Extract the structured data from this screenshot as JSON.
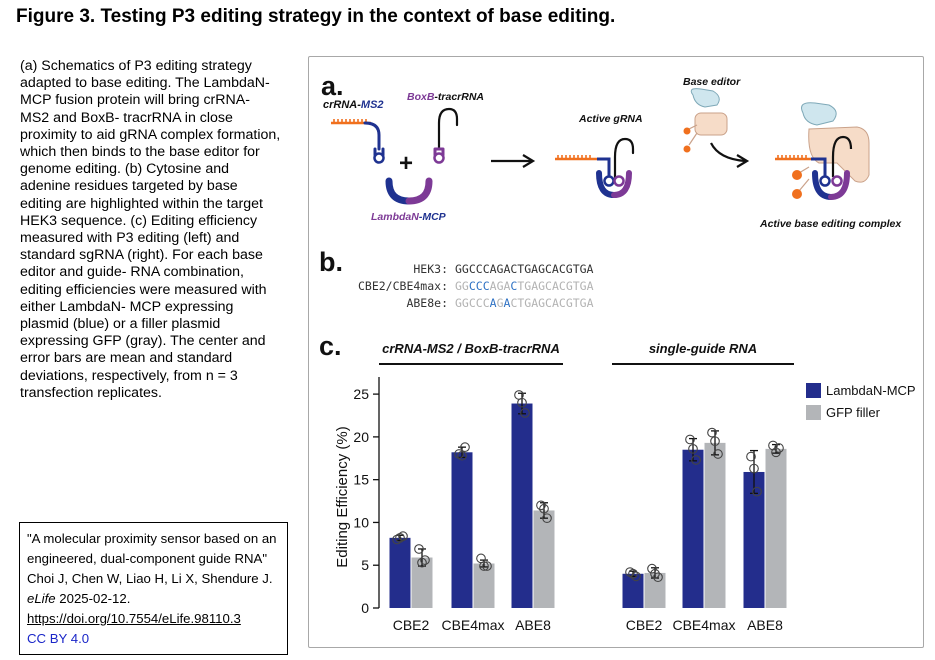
{
  "title": "Figure 3. Testing P3 editing strategy in the context of base editing.",
  "caption": "(a) Schematics of P3 editing strategy adapted to base editing. The LambdaN- MCP fusion protein will bring crRNA- MS2 and BoxB- tracrRNA in close proximity to aid gRNA complex formation, which then binds to the base editor for genome editing. (b) Cytosine and adenine residues targeted by base editing are highlighted within the target HEK3 sequence. (c) Editing efficiency measured with P3 editing (left) and standard sgRNA (right). For each base editor and guide- RNA combination, editing efficiencies were measured with either LambdaN- MCP expressing plasmid (blue) or a filler plasmid expressing GFP (gray). The center and error bars are mean and standard deviations, respectively, from n = 3 transfection replicates.",
  "citation": {
    "text_before": "\"A molecular proximity sensor based on an engineered, dual-component guide RNA\" Choi J, Chen W, Liao H, Li X, Shendure J. ",
    "journal": "eLife",
    "text_after": " 2025-02-12.",
    "doi": "https://doi.org/10.7554/eLife.98110.3",
    "license": "CC BY 4.0"
  },
  "panel_a": {
    "letter": "a.",
    "crrna_prefix": "crRNA-",
    "crrna_suffix": "MS2",
    "boxb_prefix": "BoxB",
    "boxb_suffix": "-tracrRNA",
    "plus": "+",
    "lambda_prefix": "LambdaN",
    "lambda_suffix": "-MCP",
    "active_grna": "Active gRNA",
    "base_editor": "Base editor",
    "complex": "Active base editing complex",
    "colors": {
      "orange": "#f0701e",
      "navy": "#1f3290",
      "purple": "#7d3a96",
      "peach": "#f6dcc8",
      "lightblue": "#cfe6ee"
    }
  },
  "panel_b": {
    "letter": "b.",
    "rows": [
      {
        "label": "HEK3:",
        "segments": [
          {
            "t": "GGCCCAGACTGAGCACGTGA",
            "c": "black"
          }
        ]
      },
      {
        "label": "CBE2/CBE4max:",
        "segments": [
          {
            "t": "GG",
            "c": "gray"
          },
          {
            "t": "CCC",
            "c": "blue"
          },
          {
            "t": "AGA",
            "c": "gray"
          },
          {
            "t": "C",
            "c": "blue"
          },
          {
            "t": "TGAGCACGTGA",
            "c": "gray"
          }
        ]
      },
      {
        "label": "ABE8e:",
        "segments": [
          {
            "t": "GGCCC",
            "c": "gray"
          },
          {
            "t": "A",
            "c": "blue"
          },
          {
            "t": "G",
            "c": "gray"
          },
          {
            "t": "A",
            "c": "blue"
          },
          {
            "t": "CTGAGCACGTGA",
            "c": "gray"
          }
        ]
      }
    ],
    "colors": {
      "black": "#333333",
      "gray": "#b3b3b3",
      "blue": "#2f72c4"
    }
  },
  "panel_c": {
    "letter": "c.",
    "group_labels": [
      "crRNA-MS2 / BoxB-tracrRNA",
      "single-guide RNA"
    ]
  },
  "chart_data": {
    "type": "bar",
    "ylabel": "Editing Efficiency (%)",
    "ylim": [
      0,
      27
    ],
    "yticks": [
      0,
      5,
      10,
      15,
      20,
      25
    ],
    "categories": [
      "CBE2",
      "CBE4max",
      "ABE8",
      "CBE2",
      "CBE4max",
      "ABE8"
    ],
    "groups": [
      "crRNA-MS2 / BoxB-tracrRNA",
      "single-guide RNA"
    ],
    "series": [
      {
        "name": "LambdaN-MCP",
        "color": "#232d8c",
        "values": [
          8.2,
          18.2,
          23.9,
          4.0,
          18.5,
          15.9
        ],
        "err": [
          0.3,
          0.6,
          1.2,
          0.3,
          1.3,
          2.5
        ],
        "points": [
          [
            8.0,
            8.4,
            8.2
          ],
          [
            18.0,
            18.8,
            17.8
          ],
          [
            24.9,
            22.8,
            24.0
          ],
          [
            4.2,
            3.7,
            4.0
          ],
          [
            19.7,
            17.3,
            18.6
          ],
          [
            17.7,
            13.6,
            16.3
          ]
        ]
      },
      {
        "name": "GFP filler",
        "color": "#b3b5b8",
        "values": [
          5.9,
          5.2,
          11.4,
          4.1,
          19.3,
          18.6
        ],
        "err": [
          1.0,
          0.4,
          0.9,
          0.6,
          1.4,
          0.5
        ],
        "points": [
          [
            6.9,
            5.6,
            5.3
          ],
          [
            5.8,
            4.9,
            4.9
          ],
          [
            12.0,
            10.5,
            11.6
          ],
          [
            4.6,
            3.6,
            4.0
          ],
          [
            20.5,
            18.0,
            19.5
          ],
          [
            19.0,
            18.7,
            18.2
          ]
        ]
      }
    ],
    "legend_position": "top-right",
    "grid": false
  }
}
